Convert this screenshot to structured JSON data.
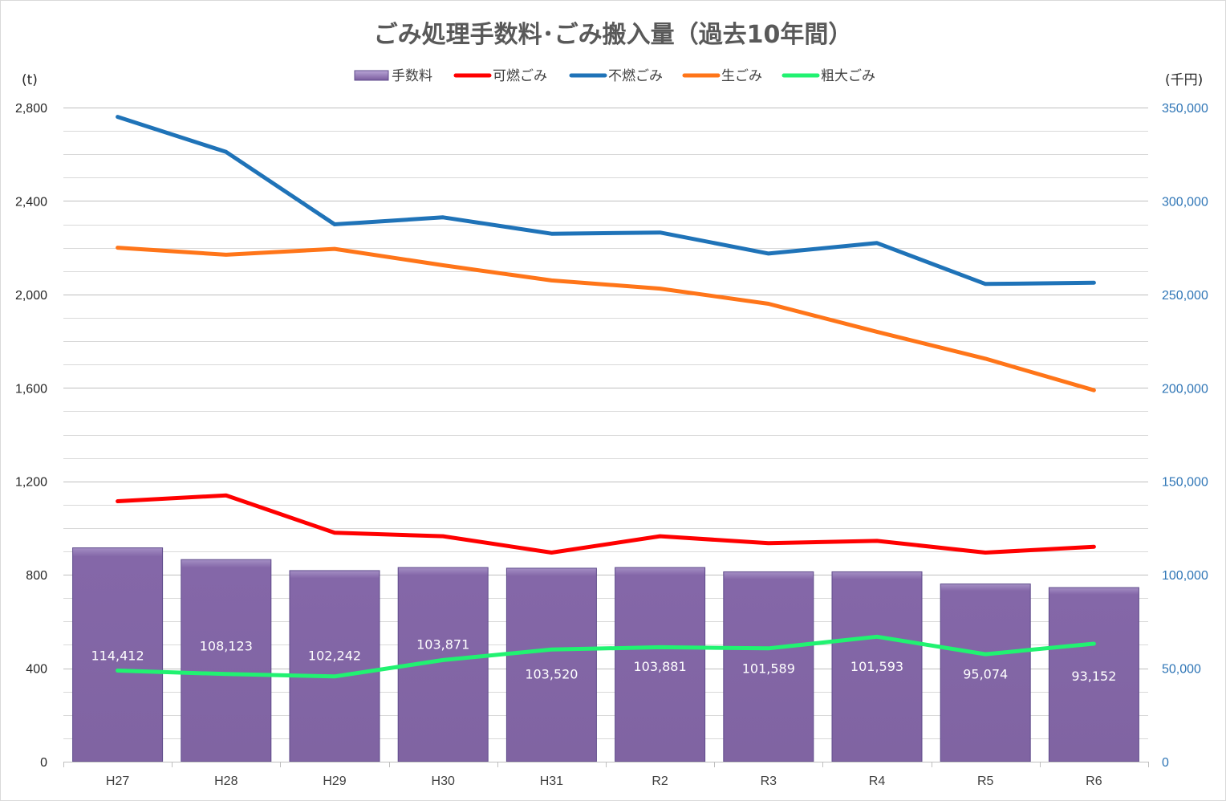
{
  "chart_data": {
    "type": "bar",
    "title": "ごみ処理手数料･ごみ搬入量（過去10年間）",
    "left_unit": "(t)",
    "right_unit": "(千円)",
    "categories": [
      "H27",
      "H28",
      "H29",
      "H30",
      "H31",
      "R2",
      "R3",
      "R4",
      "R5",
      "R6"
    ],
    "y_left": {
      "min": 0,
      "max": 2800,
      "step": 400,
      "ticks": [
        "0",
        "400",
        "800",
        "1,200",
        "1,600",
        "2,000",
        "2,400",
        "2,800"
      ]
    },
    "y_right": {
      "min": 0,
      "max": 350000,
      "step": 50000,
      "ticks": [
        "0",
        "50,000",
        "100,000",
        "150,000",
        "200,000",
        "250,000",
        "300,000",
        "350,000"
      ]
    },
    "grid": true,
    "legend_position": "top-center",
    "bars": {
      "name": "手数料",
      "axis": "right",
      "color": "#8064a2",
      "values": [
        114412,
        108123,
        102242,
        103871,
        103520,
        103881,
        101589,
        101593,
        95074,
        93152
      ],
      "labels": [
        "114,412",
        "108,123",
        "102,242",
        "103,871",
        "103,520",
        "103,881",
        "101,589",
        "101,593",
        "95,074",
        "93,152"
      ],
      "label_values": [
        57000,
        62000,
        57000,
        63000,
        47000,
        51000,
        50000,
        51000,
        47000,
        46000
      ]
    },
    "series": [
      {
        "name": "可燃ごみ",
        "axis": "left",
        "color": "#ff0000",
        "values": [
          1115,
          1140,
          980,
          965,
          895,
          965,
          935,
          945,
          895,
          920
        ]
      },
      {
        "name": "不燃ごみ",
        "axis": "left",
        "color": "#1f73b8",
        "values": [
          2760,
          2610,
          2300,
          2330,
          2260,
          2265,
          2175,
          2220,
          2045,
          2050
        ]
      },
      {
        "name": "生ごみ",
        "axis": "left",
        "color": "#ff7519",
        "values": [
          2200,
          2170,
          2195,
          2125,
          2060,
          2025,
          1960,
          1840,
          1725,
          1590
        ]
      },
      {
        "name": "粗大ごみ",
        "axis": "left",
        "color": "#21f271",
        "values": [
          390,
          375,
          365,
          435,
          480,
          490,
          485,
          535,
          460,
          505
        ]
      }
    ]
  }
}
